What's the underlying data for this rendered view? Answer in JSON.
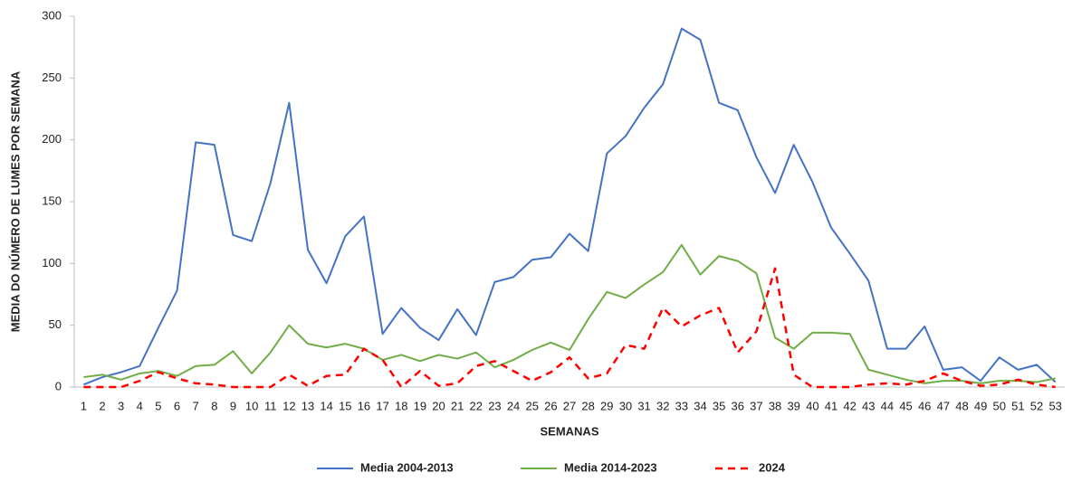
{
  "chart_data": {
    "type": "line",
    "x_label": "SEMANAS",
    "y_label": "MEDIA DO NÚMERO DE LUMES POR SEMANA",
    "categories": [
      "1",
      "2",
      "3",
      "4",
      "5",
      "6",
      "7",
      "8",
      "9",
      "10",
      "11",
      "12",
      "13",
      "14",
      "15",
      "16",
      "17",
      "18",
      "19",
      "20",
      "21",
      "22",
      "23",
      "24",
      "25",
      "26",
      "27",
      "28",
      "29",
      "30",
      "31",
      "32",
      "33",
      "34",
      "35",
      "36",
      "37",
      "38",
      "39",
      "40",
      "41",
      "42",
      "43",
      "44",
      "45",
      "46",
      "47",
      "48",
      "49",
      "50",
      "51",
      "52",
      "53"
    ],
    "series": [
      {
        "name": "Media 2004-2013",
        "color": "#4472c4",
        "dash": false,
        "values": [
          2,
          8,
          12,
          17,
          48,
          78,
          198,
          196,
          123,
          118,
          165,
          230,
          111,
          84,
          122,
          138,
          43,
          64,
          48,
          38,
          63,
          42,
          85,
          89,
          103,
          105,
          124,
          110,
          189,
          203,
          226,
          245,
          290,
          281,
          230,
          224,
          186,
          157,
          196,
          166,
          129,
          108,
          86,
          31,
          31,
          49,
          14,
          16,
          5,
          24,
          14,
          18,
          4
        ]
      },
      {
        "name": "Media 2014-2023",
        "color": "#70ad47",
        "dash": false,
        "values": [
          8,
          10,
          6,
          11,
          13,
          9,
          17,
          18,
          29,
          11,
          28,
          50,
          35,
          32,
          35,
          31,
          22,
          26,
          21,
          26,
          23,
          28,
          16,
          22,
          30,
          36,
          30,
          55,
          77,
          72,
          83,
          93,
          115,
          91,
          106,
          102,
          92,
          40,
          31,
          44,
          44,
          43,
          14,
          10,
          6,
          3,
          5,
          5,
          3,
          5,
          5,
          4,
          7
        ]
      },
      {
        "name": "2024",
        "color": "#ff0000",
        "dash": true,
        "values": [
          0,
          0,
          0,
          5,
          12,
          7,
          3,
          2,
          0,
          0,
          0,
          10,
          1,
          9,
          10,
          31,
          22,
          0,
          13,
          1,
          3,
          17,
          21,
          13,
          5,
          12,
          24,
          7,
          11,
          34,
          31,
          64,
          49,
          58,
          64,
          28,
          45,
          96,
          10,
          0,
          0,
          0,
          2,
          3,
          2,
          5,
          11,
          5,
          1,
          2,
          6,
          2,
          0
        ]
      }
    ],
    "ylim": [
      0,
      300
    ],
    "yticks": [
      0,
      50,
      100,
      150,
      200,
      250,
      300
    ],
    "grid": false,
    "legend": "bottom"
  }
}
